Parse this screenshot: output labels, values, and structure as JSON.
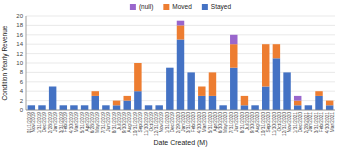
{
  "chart_data": {
    "type": "bar",
    "stacked": true,
    "xlabel": "Date Created (M)",
    "ylabel": "Condition Yearly Revenue",
    "categories": [
      "01/1/2019\nNov/2019",
      "1/31/2019\nDec/2019",
      "2/28/2019\nJan/2019",
      "3/31/2019\nFeb/2019",
      "4/30/2019\nMar/2019",
      "5/31/2019\nApr/2019",
      "6/28/2019\nMay/2019",
      "7/31/2019\nJun/2019",
      "8/31/2019\nJul/2019",
      "9/30/2019\nAug/2019",
      "10/31/2019\nSep/2019",
      "11/30/2019\nOct/2019",
      "12/31/2019\nNov/2019",
      "1/31/2020\nDec/2019",
      "2/29/2020\nJan/2020",
      "3/31/2020\nFeb/2020",
      "4/30/2020\nMar/2020",
      "5/31/2020\nApr/2020",
      "6/30/2020\nMay/2020",
      "7/31/2020\nJun/2020",
      "8/31/2020\nJul/2020",
      "9/30/2020\nAug/2020",
      "10/31/2020\nSep/2020",
      "11/30/2020\nOct/2020",
      "12/31/2020\nNov/2020",
      "1/31/2021\nDec/2020",
      "2/28/2021\nJan/2021",
      "3/31/2021\nFeb/2021",
      "4/30/2021\nMar/2021"
    ],
    "series": [
      {
        "name": "Stayed",
        "color": "#4472c4",
        "values": [
          1,
          1,
          5,
          1,
          1,
          1,
          3,
          1,
          1,
          2,
          4,
          1,
          1,
          9,
          15,
          8,
          3,
          3,
          1,
          9,
          1,
          1,
          5,
          11,
          8,
          1,
          1,
          3,
          1
        ]
      },
      {
        "name": "Moved",
        "color": "#ed7d31",
        "values": [
          0,
          0,
          0,
          0,
          0,
          0,
          1,
          0,
          1,
          1,
          6,
          0,
          0,
          0,
          3,
          0,
          2,
          5,
          0,
          5,
          2,
          0,
          9,
          3,
          0,
          1,
          0,
          1,
          1
        ]
      },
      {
        "name": "(null)",
        "color": "#9966cc",
        "values": [
          0,
          0,
          0,
          0,
          0,
          0,
          0,
          0,
          0,
          0,
          0,
          0,
          0,
          0,
          1,
          0,
          0,
          0,
          0,
          2,
          0,
          0,
          0,
          0,
          0,
          1,
          0,
          0,
          0
        ]
      }
    ],
    "ylim": [
      0,
      20
    ],
    "yticks": [
      0,
      2,
      4,
      6,
      8,
      10,
      12,
      14,
      16,
      18,
      20
    ],
    "grid": true,
    "legend": "top"
  }
}
